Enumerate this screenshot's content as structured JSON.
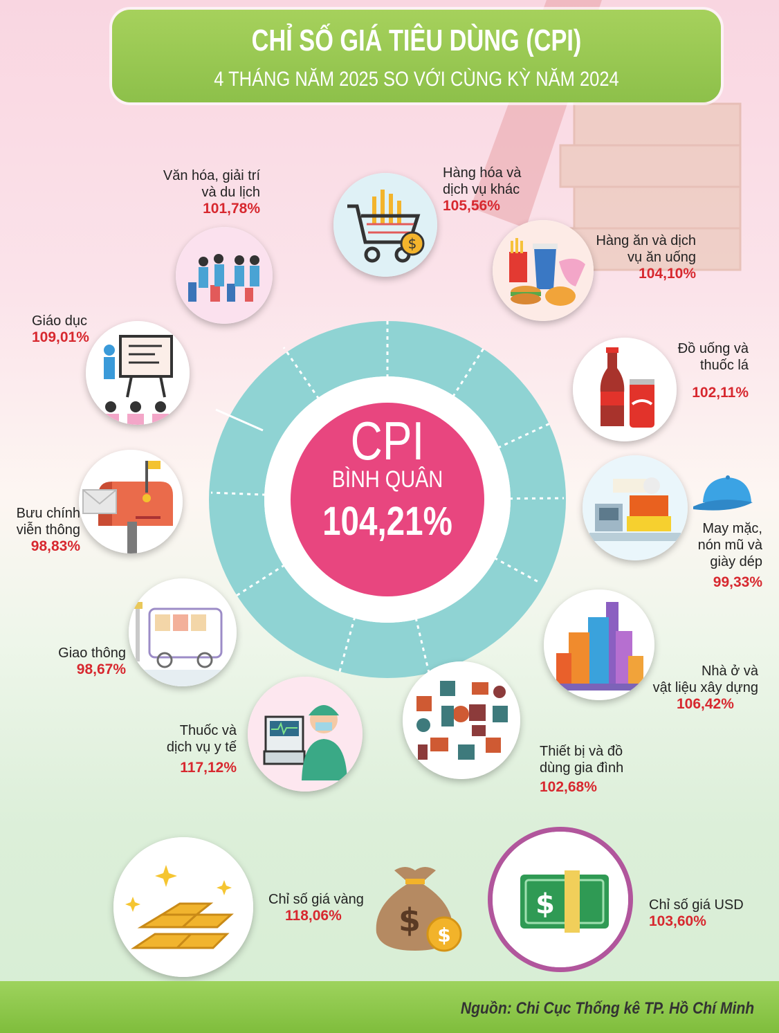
{
  "header": {
    "title": "CHỈ SỐ GIÁ TIÊU DÙNG (CPI)",
    "subtitle": "4 THÁNG NĂM 2025 SO VỚI CÙNG KỲ NĂM 2024"
  },
  "center": {
    "label": "CPI",
    "sublabel": "BÌNH QUÂN",
    "value": "104,21%"
  },
  "groups": [
    {
      "name": "Văn hóa, giải trí",
      "name2": "và du lịch",
      "value": "101,78%",
      "icon": "travelers-icon"
    },
    {
      "name": "Hàng hóa và",
      "name2": "dịch vụ khác",
      "value": "105,56%",
      "icon": "shopping-cart-icon"
    },
    {
      "name": "Hàng ăn và dịch",
      "name2": "vụ ăn uống",
      "value": "104,10%",
      "icon": "fast-food-icon"
    },
    {
      "name": "Đồ uống và",
      "name2": "thuốc lá",
      "value": "102,11%",
      "icon": "soda-bottle-icon"
    },
    {
      "name": "May mặc,",
      "name2": "nón mũ và",
      "name3": "giày dép",
      "value": "99,33%",
      "icon": "garment-factory-icon"
    },
    {
      "name": "Nhà ở và",
      "name2": "vật liệu xây dựng",
      "value": "106,42%",
      "icon": "buildings-icon"
    },
    {
      "name": "Thiết bị và đồ",
      "name2": "dùng gia đình",
      "value": "102,68%",
      "icon": "household-items-icon"
    },
    {
      "name": "Thuốc và",
      "name2": "dịch vụ y tế",
      "value": "117,12%",
      "icon": "doctor-icon"
    },
    {
      "name": "Giao thông",
      "value": "98,67%",
      "icon": "bus-icon"
    },
    {
      "name": "Bưu chính",
      "name2": "viễn thông",
      "value": "98,83%",
      "icon": "mailbox-icon"
    },
    {
      "name": "Giáo dục",
      "value": "109,01%",
      "icon": "teacher-board-icon"
    }
  ],
  "extras": [
    {
      "name": "Chỉ số giá vàng",
      "value": "118,06%",
      "icon": "gold-bars-icon"
    },
    {
      "name": "Chỉ số giá USD",
      "value": "103,60%",
      "icon": "dollar-bill-icon"
    }
  ],
  "footer": {
    "source": "Nguồn: Chi Cục Thống kê TP. Hồ Chí Minh"
  },
  "colors": {
    "header_green": "#95c852",
    "ring_teal": "#8fd3d3",
    "center_pink": "#e8467f",
    "value_red": "#d7282f",
    "usd_ring": "#b1569c"
  }
}
